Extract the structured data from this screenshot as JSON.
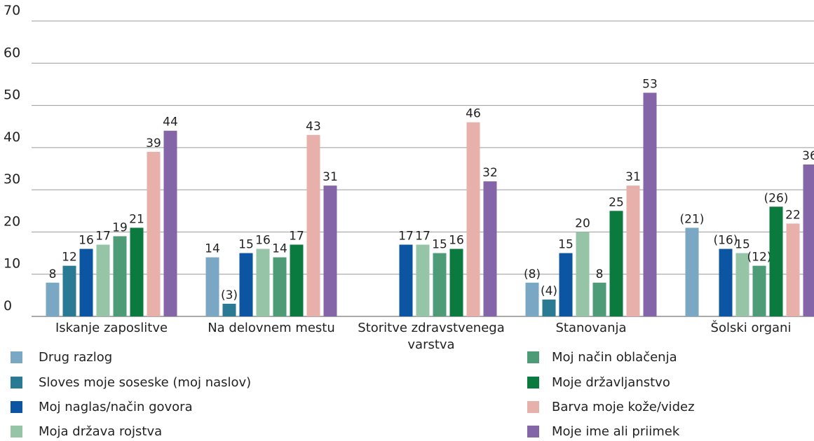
{
  "chart_data": {
    "type": "bar",
    "categories": [
      "Iskanje zaposlitve",
      "Na delovnem mestu",
      "Storitve zdravstvenega varstva",
      "Stanovanja",
      "Šolski organi"
    ],
    "series": [
      {
        "name": "Drug razlog",
        "color": "#7aa8c4",
        "values": [
          8,
          14,
          null,
          8,
          21
        ],
        "value_labels": [
          "8",
          "14",
          null,
          "(8)",
          "(21)"
        ]
      },
      {
        "name": "Sloves moje soseske (moj naslov)",
        "color": "#2a7a94",
        "values": [
          12,
          3,
          null,
          4,
          null
        ],
        "value_labels": [
          "12",
          "(3)",
          null,
          "(4)",
          null
        ]
      },
      {
        "name": "Moj naglas/način govora",
        "color": "#0b55a3",
        "values": [
          16,
          15,
          17,
          15,
          16
        ],
        "value_labels": [
          "16",
          "15",
          "17",
          "15",
          "(16)"
        ]
      },
      {
        "name": "Moja država rojstva",
        "color": "#95c4a6",
        "values": [
          17,
          16,
          17,
          20,
          15
        ]
      },
      {
        "name": "Moj način oblačenja",
        "color": "#4e9b78",
        "values": [
          19,
          14,
          15,
          8,
          12
        ],
        "value_labels": [
          "19",
          "14",
          "15",
          "8",
          "(12)"
        ]
      },
      {
        "name": "Moje državljanstvo",
        "color": "#0a7a3e",
        "values": [
          21,
          17,
          16,
          25,
          26
        ],
        "value_labels": [
          "21",
          "17",
          "16",
          "25",
          "(26)"
        ]
      },
      {
        "name": "Barva moje kože/videz",
        "color": "#e8b0aa",
        "values": [
          39,
          43,
          46,
          31,
          22
        ]
      },
      {
        "name": "Moje ime ali priimek",
        "color": "#8466a8",
        "values": [
          44,
          31,
          32,
          53,
          36
        ]
      }
    ],
    "ylim": [
      0,
      70
    ],
    "yticks": [
      0,
      10,
      20,
      30,
      40,
      50,
      60,
      70
    ],
    "grid": true
  }
}
